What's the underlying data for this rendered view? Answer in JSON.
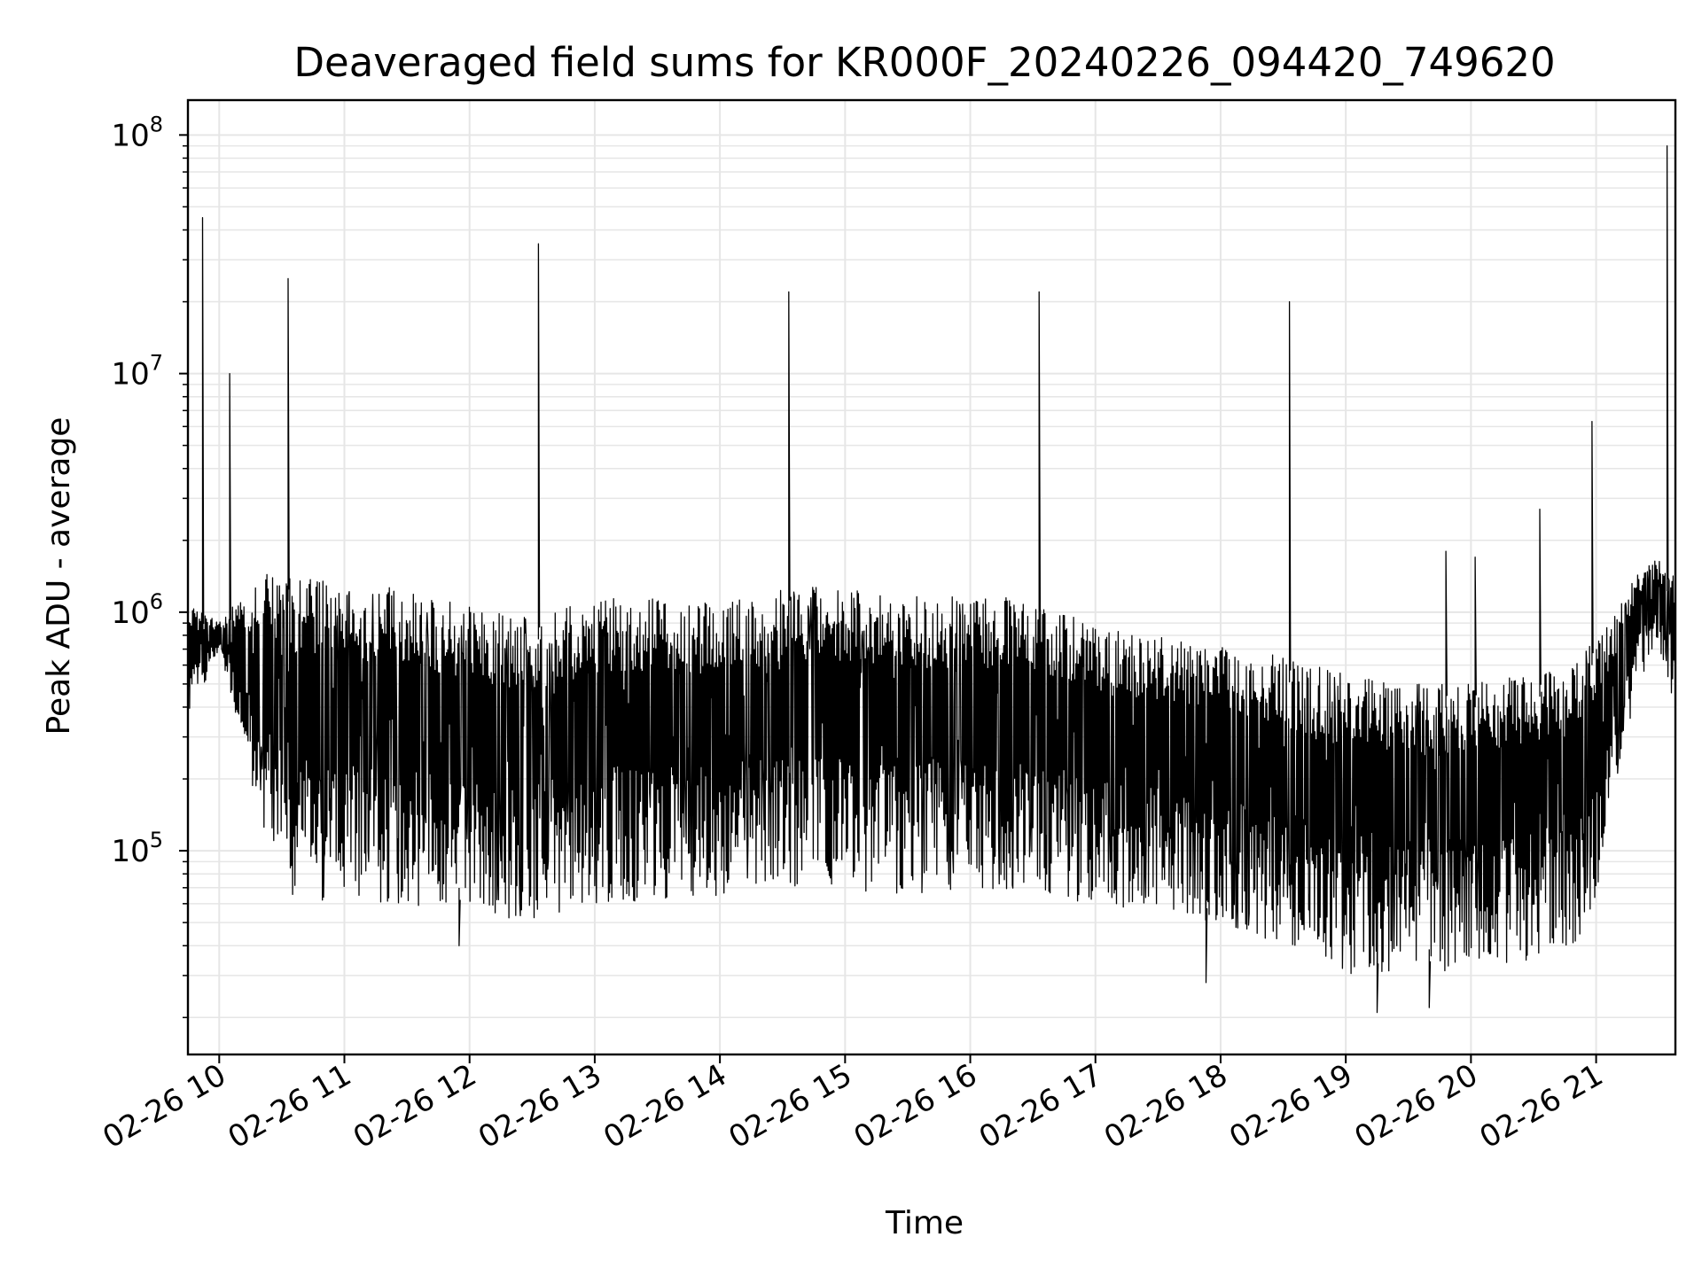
{
  "chart_data": {
    "type": "line",
    "title": "Deaveraged field sums for KR000F_20240226_094420_749620",
    "xlabel": "Time",
    "ylabel": "Peak ADU - average",
    "yscale": "log",
    "ylim": [
      14000,
      140000000
    ],
    "xlim": [
      "02-26 09:45",
      "02-26 21:38"
    ],
    "grid": true,
    "grid_minor": true,
    "line_color": "#000000",
    "grid_color": "#e6e6e6",
    "x_ticks": [
      {
        "value": "02-26 10:00",
        "label": "02-26 10"
      },
      {
        "value": "02-26 11:00",
        "label": "02-26 11"
      },
      {
        "value": "02-26 12:00",
        "label": "02-26 12"
      },
      {
        "value": "02-26 13:00",
        "label": "02-26 13"
      },
      {
        "value": "02-26 14:00",
        "label": "02-26 14"
      },
      {
        "value": "02-26 15:00",
        "label": "02-26 15"
      },
      {
        "value": "02-26 16:00",
        "label": "02-26 16"
      },
      {
        "value": "02-26 17:00",
        "label": "02-26 17"
      },
      {
        "value": "02-26 18:00",
        "label": "02-26 18"
      },
      {
        "value": "02-26 19:00",
        "label": "02-26 19"
      },
      {
        "value": "02-26 20:00",
        "label": "02-26 20"
      },
      {
        "value": "02-26 21:00",
        "label": "02-26 21"
      }
    ],
    "y_ticks": [
      {
        "value": 100000,
        "base": "10",
        "exp": "5"
      },
      {
        "value": 1000000,
        "base": "10",
        "exp": "6"
      },
      {
        "value": 10000000,
        "base": "10",
        "exp": "7"
      },
      {
        "value": 100000000,
        "base": "10",
        "exp": "8"
      }
    ],
    "envelope": [
      {
        "x": "02-26 09:45",
        "upper": 1100000,
        "lower": 350000
      },
      {
        "x": "02-26 10:00",
        "upper": 900000,
        "lower": 700000
      },
      {
        "x": "02-26 10:10",
        "upper": 1200000,
        "lower": 300000
      },
      {
        "x": "02-26 10:20",
        "upper": 1500000,
        "lower": 120000
      },
      {
        "x": "02-26 10:30",
        "upper": 1400000,
        "lower": 65000
      },
      {
        "x": "02-26 11:00",
        "upper": 1350000,
        "lower": 60000
      },
      {
        "x": "02-26 11:30",
        "upper": 1250000,
        "lower": 58000
      },
      {
        "x": "02-26 12:00",
        "upper": 1050000,
        "lower": 55000
      },
      {
        "x": "02-26 12:30",
        "upper": 950000,
        "lower": 50000
      },
      {
        "x": "02-26 13:00",
        "upper": 1150000,
        "lower": 60000
      },
      {
        "x": "02-26 13:30",
        "upper": 1150000,
        "lower": 62000
      },
      {
        "x": "02-26 14:00",
        "upper": 1100000,
        "lower": 65000
      },
      {
        "x": "02-26 14:30",
        "upper": 1250000,
        "lower": 70000
      },
      {
        "x": "02-26 15:00",
        "upper": 1300000,
        "lower": 65000
      },
      {
        "x": "02-26 15:30",
        "upper": 1200000,
        "lower": 65000
      },
      {
        "x": "02-26 16:00",
        "upper": 1150000,
        "lower": 70000
      },
      {
        "x": "02-26 16:30",
        "upper": 1150000,
        "lower": 65000
      },
      {
        "x": "02-26 17:00",
        "upper": 900000,
        "lower": 60000
      },
      {
        "x": "02-26 17:30",
        "upper": 800000,
        "lower": 55000
      },
      {
        "x": "02-26 18:00",
        "upper": 750000,
        "lower": 50000
      },
      {
        "x": "02-26 18:30",
        "upper": 650000,
        "lower": 40000
      },
      {
        "x": "02-26 19:00",
        "upper": 550000,
        "lower": 30000
      },
      {
        "x": "02-26 19:30",
        "upper": 500000,
        "lower": 30000
      },
      {
        "x": "02-26 20:00",
        "upper": 500000,
        "lower": 32000
      },
      {
        "x": "02-26 20:30",
        "upper": 550000,
        "lower": 35000
      },
      {
        "x": "02-26 20:50",
        "upper": 600000,
        "lower": 40000
      },
      {
        "x": "02-26 21:00",
        "upper": 800000,
        "lower": 60000
      },
      {
        "x": "02-26 21:10",
        "upper": 1000000,
        "lower": 200000
      },
      {
        "x": "02-26 21:20",
        "upper": 1500000,
        "lower": 500000
      },
      {
        "x": "02-26 21:30",
        "upper": 1700000,
        "lower": 700000
      },
      {
        "x": "02-26 21:38",
        "upper": 1400000,
        "lower": 400000
      }
    ],
    "spikes": [
      {
        "x": "02-26 09:52",
        "value": 45000000
      },
      {
        "x": "02-26 10:05",
        "value": 10000000
      },
      {
        "x": "02-26 10:33",
        "value": 25000000
      },
      {
        "x": "02-26 12:33",
        "value": 35000000
      },
      {
        "x": "02-26 14:33",
        "value": 22000000
      },
      {
        "x": "02-26 16:33",
        "value": 22000000
      },
      {
        "x": "02-26 18:33",
        "value": 20000000
      },
      {
        "x": "02-26 19:48",
        "value": 1800000
      },
      {
        "x": "02-26 20:02",
        "value": 1700000
      },
      {
        "x": "02-26 20:33",
        "value": 2700000
      },
      {
        "x": "02-26 20:58",
        "value": 6300000
      },
      {
        "x": "02-26 21:34",
        "value": 90000000
      }
    ],
    "dips": [
      {
        "x": "02-26 11:55",
        "value": 40000
      },
      {
        "x": "02-26 17:53",
        "value": 28000
      },
      {
        "x": "02-26 19:15",
        "value": 21000
      },
      {
        "x": "02-26 19:40",
        "value": 22000
      }
    ]
  }
}
